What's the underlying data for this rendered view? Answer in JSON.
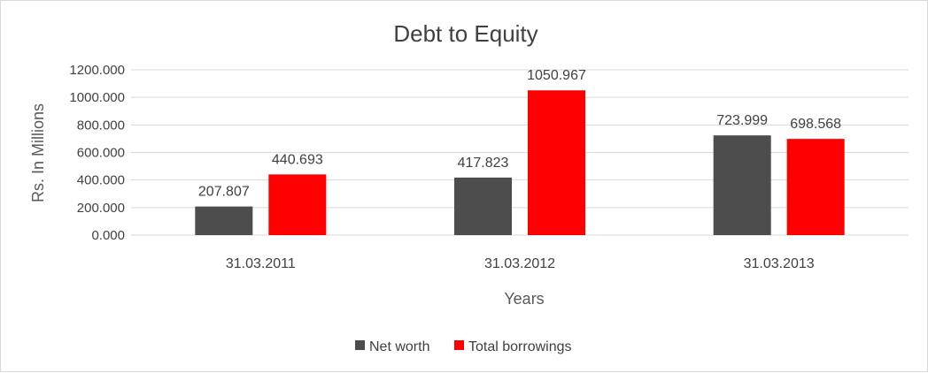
{
  "chart_data": {
    "type": "bar",
    "title": "Debt to Equity",
    "xlabel": "Years",
    "ylabel": "Rs. In Millions",
    "categories": [
      "31.03.2011",
      "31.03.2012",
      "31.03.2013"
    ],
    "series": [
      {
        "name": "Net worth",
        "values": [
          207.807,
          417.823,
          723.999
        ],
        "labels": [
          "207.807",
          "417.823",
          "723.999"
        ],
        "color": "#4d4d4d"
      },
      {
        "name": "Total borrowings",
        "values": [
          440.693,
          1050.967,
          698.568
        ],
        "labels": [
          "440.693",
          "1050.967",
          "698.568"
        ],
        "color": "#ff0000"
      }
    ],
    "yticks": [
      0,
      200,
      400,
      600,
      800,
      1000,
      1200
    ],
    "ytick_labels": [
      "0.000",
      "200.000",
      "400.000",
      "600.000",
      "800.000",
      "1000.000",
      "1200.000"
    ],
    "ylim": [
      0,
      1200
    ],
    "grid": true,
    "legend_position": "bottom"
  }
}
